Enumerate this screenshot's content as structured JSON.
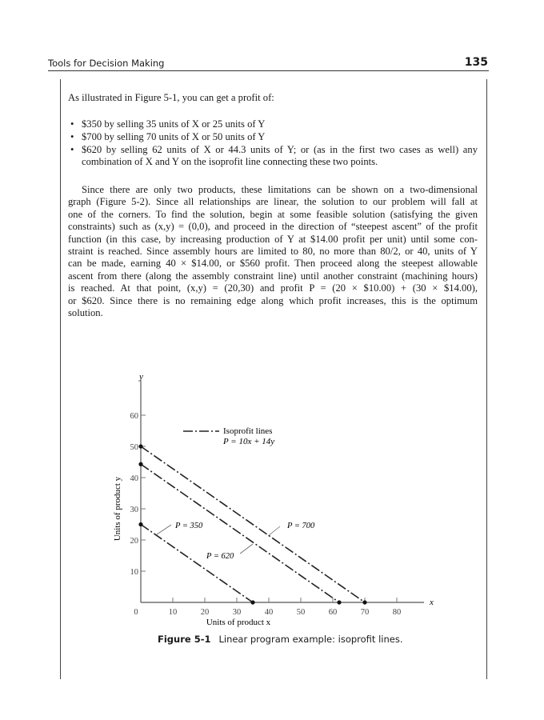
{
  "header": {
    "running_title": "Tools for Decision Making",
    "page_number": "135"
  },
  "intro": "As illustrated in Figure 5-1, you can get a profit of:",
  "bullets": [
    [
      "$350 by selling 35 units of X or 25 units of Y"
    ],
    [
      "$700 by selling 70 units of X or 50 units of Y"
    ],
    [
      "$620 by selling 62 units of X or 44.3 units of Y; or (as in the first two cases as well) any",
      "combination of X and Y on the isoprofit line connecting these two points."
    ]
  ],
  "paragraph_lines": [
    "Since there are only two products, these limitations can be shown on a two-dimensional",
    "graph (Figure 5-2). Since all relationships are linear, the solution to our problem will fall at",
    "one of the corners. To find the solution, begin at some feasible solution (satisfying the given",
    "constraints) such as (x,y) = (0,0), and proceed in the direction of “steepest ascent” of the profit",
    "function (in this case, by increasing production of Y at $14.00 profit per unit) until some con-",
    "straint is reached. Since assembly hours are limited to 80, no more than 80/2, or 40, units of Y",
    "can be made, earning 40 × $14.00, or $560 profit. Then proceed along the steepest allowable",
    "ascent from there (along the assembly constraint line) until another constraint (machining hours)",
    "is reached. At that point, (x,y) = (20,30) and profit P = (20 × $10.00) + (30 × $14.00),",
    "or $620. Since there is no remaining edge along which profit increases, this is the optimum",
    "solution."
  ],
  "figure": {
    "label": "Figure 5-1",
    "caption": "Linear program example: isoprofit lines."
  },
  "chart_data": {
    "type": "line",
    "xlabel": "Units of product x",
    "ylabel": "Units of product y",
    "x_axis_letter": "x",
    "y_axis_letter": "y",
    "origin_label": "0",
    "xlim": [
      0,
      90
    ],
    "ylim": [
      0,
      68
    ],
    "xticks": [
      10,
      20,
      30,
      40,
      50,
      60,
      70,
      80
    ],
    "yticks": [
      10,
      20,
      30,
      40,
      50,
      60
    ],
    "grid": false,
    "line_style": "dash-dot",
    "legend": {
      "label": "Isoprofit lines",
      "equation": "P = 10x + 14y",
      "placement": "top-center"
    },
    "series": [
      {
        "name": "P = 350",
        "points": [
          [
            0,
            25
          ],
          [
            35,
            0
          ]
        ]
      },
      {
        "name": "P = 620",
        "points": [
          [
            0,
            44.3
          ],
          [
            62,
            0
          ]
        ]
      },
      {
        "name": "P = 700",
        "points": [
          [
            0,
            50
          ],
          [
            70,
            0
          ]
        ]
      }
    ]
  }
}
